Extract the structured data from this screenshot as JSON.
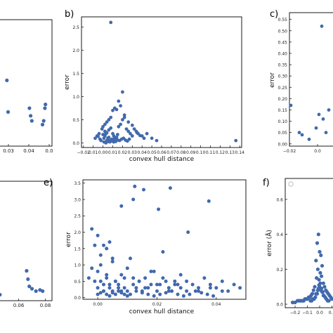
{
  "chart_data": [
    {
      "panel": "a",
      "panel_letter": "",
      "type": "scatter",
      "xticks": [
        "0.03",
        "0.04",
        "0.0"
      ],
      "x": [
        0.012,
        0.013,
        0.031,
        0.032,
        0.033,
        0.042,
        0.043,
        0.044,
        0.0445
      ],
      "y": [
        0.52,
        0.27,
        0.3,
        0.24,
        0.2,
        0.17,
        0.2,
        0.3,
        0.33
      ],
      "xlim": [
        0.005,
        0.05
      ],
      "ylim": [
        0.0,
        1.0
      ],
      "xlabel": "",
      "ylabel": ""
    },
    {
      "panel": "b",
      "panel_letter": "b)",
      "type": "scatter",
      "xlabel": "convex hull distance",
      "ylabel": "error",
      "xlim": [
        -0.022,
        0.142
      ],
      "ylim": [
        -0.1,
        2.72
      ],
      "xticks": [
        "−0.02",
        "0.01",
        "0.00",
        "0.01",
        "0.02",
        "0.03",
        "0.04",
        "0.05",
        "0.06",
        "0.07",
        "0.08",
        "0.09",
        "0.10",
        "0.11",
        "0.12",
        "0.13",
        "0.14"
      ],
      "xtick_values": [
        -0.02,
        -0.01,
        0.0,
        0.01,
        0.02,
        0.03,
        0.04,
        0.05,
        0.06,
        0.07,
        0.08,
        0.09,
        0.1,
        0.11,
        0.12,
        0.13,
        0.14
      ],
      "yticks": [
        "0.0",
        "0.5",
        "1.0",
        "1.5",
        "2.0",
        "2.5"
      ],
      "ytick_values": [
        0.0,
        0.5,
        1.0,
        1.5,
        2.0,
        2.5
      ],
      "x": [
        0.008,
        -0.002,
        0.001,
        0.002,
        0.003,
        0.004,
        0.005,
        0.006,
        0.007,
        0.009,
        0.01,
        0.011,
        0.012,
        0.013,
        0.014,
        0.015,
        -0.004,
        -0.006,
        -0.008,
        -0.001,
        0.0,
        0.002,
        0.004,
        0.006,
        0.008,
        0.01,
        0.012,
        0.014,
        0.016,
        0.018,
        0.02,
        0.022,
        0.024,
        0.026,
        0.028,
        0.03,
        0.032,
        0.034,
        0.036,
        0.04,
        0.045,
        0.05,
        0.055,
        0.016,
        0.018,
        0.02,
        0.003,
        0.001,
        0.005,
        0.007,
        0.009,
        0.011,
        0.013,
        0.015,
        0.017,
        0.019,
        0.021,
        0.023,
        0.025,
        0.027,
        0.002,
        0.004,
        0.006,
        0.008,
        0.01,
        0.012,
        0.0,
        -0.003,
        -0.005,
        0.022,
        0.026,
        0.03,
        0.035,
        0.038,
        0.042,
        0.136
      ],
      "y": [
        2.6,
        0.05,
        0.1,
        0.15,
        0.2,
        0.05,
        0.1,
        0.12,
        0.05,
        0.08,
        0.2,
        0.15,
        0.1,
        0.05,
        0.12,
        0.18,
        0.2,
        0.15,
        0.1,
        0.3,
        0.35,
        0.4,
        0.45,
        0.5,
        0.55,
        0.7,
        0.75,
        0.72,
        0.35,
        0.4,
        0.5,
        0.55,
        0.3,
        0.25,
        0.2,
        0.15,
        0.3,
        0.25,
        0.2,
        0.15,
        0.2,
        0.1,
        0.05,
        0.9,
        0.8,
        1.1,
        0.0,
        0.02,
        0.03,
        0.02,
        0.04,
        0.02,
        0.03,
        0.06,
        0.05,
        0.08,
        0.1,
        0.06,
        0.04,
        0.08,
        0.25,
        0.22,
        0.28,
        0.32,
        0.05,
        0.12,
        0.18,
        0.08,
        0.14,
        0.6,
        0.45,
        0.38,
        0.22,
        0.16,
        0.1,
        0.05
      ]
    },
    {
      "panel": "c",
      "panel_letter": "c)",
      "type": "scatter",
      "xlabel": "",
      "ylabel": "error",
      "xlim": [
        -0.02,
        0.015
      ],
      "ylim": [
        -0.01,
        0.58
      ],
      "xticks": [
        "−0.02",
        "0.0"
      ],
      "xtick_values": [
        -0.02,
        0.0
      ],
      "yticks": [
        "0.00",
        "0.05",
        "0.10",
        "0.15",
        "0.20",
        "0.25",
        "0.30",
        "0.35",
        "0.40",
        "0.45",
        "0.50",
        "0.55"
      ],
      "ytick_values": [
        0.0,
        0.05,
        0.1,
        0.15,
        0.2,
        0.25,
        0.3,
        0.35,
        0.4,
        0.45,
        0.5,
        0.55
      ],
      "x": [
        -0.019,
        -0.013,
        -0.011,
        -0.006,
        -0.001,
        0.001,
        0.004,
        0.006,
        0.008,
        0.003
      ],
      "y": [
        0.17,
        0.05,
        0.04,
        0.02,
        0.07,
        0.13,
        0.11,
        0.05,
        0.15,
        0.52
      ]
    },
    {
      "panel": "d",
      "panel_letter": "",
      "type": "scatter",
      "xlabel": "",
      "ylabel": "",
      "xlim": [
        0.045,
        0.085
      ],
      "ylim": [
        0.0,
        1.0
      ],
      "xticks": [
        "0.06",
        "0.08"
      ],
      "xtick_values": [
        0.06,
        0.08
      ],
      "x": [
        0.046,
        0.066,
        0.067,
        0.068,
        0.07,
        0.073,
        0.076,
        0.078
      ],
      "y": [
        0.05,
        0.25,
        0.18,
        0.12,
        0.1,
        0.08,
        0.09,
        0.08
      ]
    },
    {
      "panel": "e",
      "panel_letter": "e)",
      "type": "scatter",
      "xlabel": "convex hull distance",
      "ylabel": "error",
      "xlim": [
        -0.005,
        0.05
      ],
      "ylim": [
        -0.05,
        3.6
      ],
      "xticks": [
        "0.00",
        "0.02",
        "0.04"
      ],
      "xtick_values": [
        0.0,
        0.02,
        0.04
      ],
      "yticks": [
        "0.0",
        "0.5",
        "1.0",
        "1.5",
        "2.0",
        "2.5",
        "3.0",
        "3.5"
      ],
      "ytick_values": [
        0.0,
        0.5,
        1.0,
        1.5,
        2.0,
        2.5,
        3.0,
        3.5
      ],
      "x": [
        0.0,
        0.001,
        0.002,
        0.003,
        0.004,
        0.005,
        0.006,
        0.007,
        0.008,
        0.009,
        0.01,
        0.011,
        0.012,
        0.013,
        0.014,
        0.015,
        0.016,
        0.017,
        0.018,
        0.019,
        0.02,
        0.021,
        0.022,
        0.023,
        0.024,
        0.025,
        0.026,
        0.027,
        0.028,
        0.03,
        0.032,
        0.034,
        0.036,
        0.038,
        0.04,
        0.042,
        0.044,
        0.046,
        0.048,
        -0.002,
        -0.003,
        -0.001,
        0.0,
        0.001,
        0.002,
        0.003,
        0.004,
        0.005,
        0.006,
        0.007,
        0.008,
        0.009,
        0.01,
        0.012,
        0.014,
        0.016,
        0.018,
        0.02,
        0.022,
        0.024,
        0.026,
        0.028,
        0.03,
        0.034,
        0.038,
        0.042,
        0.0,
        0.001,
        0.002,
        0.003,
        0.004,
        0.005,
        0.006,
        0.007,
        0.008,
        0.009,
        0.01,
        0.011,
        0.013,
        0.015,
        0.017,
        0.019,
        0.021,
        0.023,
        0.025,
        0.027,
        0.029,
        0.031,
        0.033,
        0.035,
        0.037,
        0.039,
        -0.002,
        -0.001,
        0.0,
        0.001,
        0.002,
        0.003,
        0.004,
        0.005,
        0.008,
        0.012,
        0.0125,
        0.0245,
        0.0205,
        0.0155,
        0.0305,
        0.0375
      ],
      "y": [
        0.3,
        0.5,
        0.2,
        0.7,
        0.4,
        1.1,
        0.5,
        0.3,
        0.2,
        0.6,
        0.9,
        1.2,
        0.4,
        0.3,
        0.5,
        0.2,
        0.6,
        0.3,
        0.4,
        0.8,
        0.2,
        0.4,
        1.4,
        0.5,
        0.3,
        0.2,
        0.5,
        0.4,
        0.3,
        0.2,
        0.4,
        0.3,
        0.6,
        0.4,
        0.3,
        0.5,
        0.2,
        0.4,
        0.3,
        0.9,
        0.6,
        0.5,
        0.8,
        1.0,
        0.4,
        0.6,
        0.3,
        0.2,
        0.5,
        0.4,
        0.7,
        0.3,
        0.2,
        0.6,
        0.5,
        0.3,
        0.8,
        0.4,
        0.6,
        0.2,
        0.4,
        0.7,
        0.5,
        0.2,
        0.3,
        0.2,
        0.1,
        0.15,
        0.2,
        0.1,
        0.05,
        0.15,
        0.1,
        0.2,
        0.15,
        0.1,
        0.05,
        0.1,
        0.2,
        0.15,
        0.1,
        0.05,
        0.1,
        0.15,
        0.2,
        0.1,
        0.05,
        0.1,
        0.2,
        0.15,
        0.1,
        0.05,
        2.1,
        1.6,
        1.9,
        1.3,
        1.6,
        1.5,
        1.7,
        1.2,
        2.8,
        3.0,
        3.4,
        3.35,
        2.7,
        3.3,
        2.0,
        2.95
      ]
    },
    {
      "panel": "f",
      "panel_letter": "f)",
      "type": "scatter",
      "xlabel": "",
      "ylabel": "error (Å)",
      "xlim": [
        -0.28,
        0.12
      ],
      "ylim": [
        -0.02,
        0.72
      ],
      "xticks": [
        "−0.2",
        "−0.1",
        "0.0",
        "0.1"
      ],
      "xtick_values": [
        -0.2,
        -0.1,
        0.0,
        0.1
      ],
      "yticks": [
        "0.0",
        "0.2",
        "0.4",
        "0.6"
      ],
      "ytick_values": [
        0.0,
        0.2,
        0.4,
        0.6
      ],
      "x": [
        -0.01,
        -0.02,
        0.0,
        0.01,
        -0.03,
        0.02,
        -0.015,
        0.005,
        0.015,
        -0.025,
        -0.005,
        0.03,
        0.04,
        -0.04,
        -0.05,
        0.05,
        -0.06,
        0.06,
        -0.07,
        0.07,
        -0.08,
        0.08,
        -0.09,
        -0.1,
        -0.12,
        -0.14,
        -0.16,
        -0.18,
        -0.2,
        -0.22,
        0.09,
        0.1,
        -0.11,
        -0.13,
        -0.15,
        -0.17,
        0.0,
        0.01,
        -0.01,
        0.02,
        -0.02,
        0.03,
        -0.03,
        0.005,
        -0.005,
        0.015,
        -0.015,
        0.025,
        -0.025,
        0.035,
        -0.035,
        0.045,
        -0.045,
        0.055,
        -0.055,
        0.065,
        -0.065,
        0.075,
        -0.075
      ],
      "y": [
        0.4,
        0.35,
        0.3,
        0.28,
        0.25,
        0.22,
        0.2,
        0.18,
        0.16,
        0.15,
        0.14,
        0.12,
        0.1,
        0.1,
        0.08,
        0.08,
        0.06,
        0.07,
        0.05,
        0.06,
        0.04,
        0.05,
        0.04,
        0.03,
        0.03,
        0.02,
        0.02,
        0.02,
        0.01,
        0.01,
        0.04,
        0.03,
        0.03,
        0.02,
        0.02,
        0.02,
        0.1,
        0.08,
        0.09,
        0.07,
        0.06,
        0.05,
        0.06,
        0.12,
        0.11,
        0.09,
        0.08,
        0.07,
        0.06,
        0.05,
        0.04,
        0.04,
        0.03,
        0.03,
        0.03,
        0.02,
        0.02,
        0.02,
        0.02
      ]
    }
  ]
}
